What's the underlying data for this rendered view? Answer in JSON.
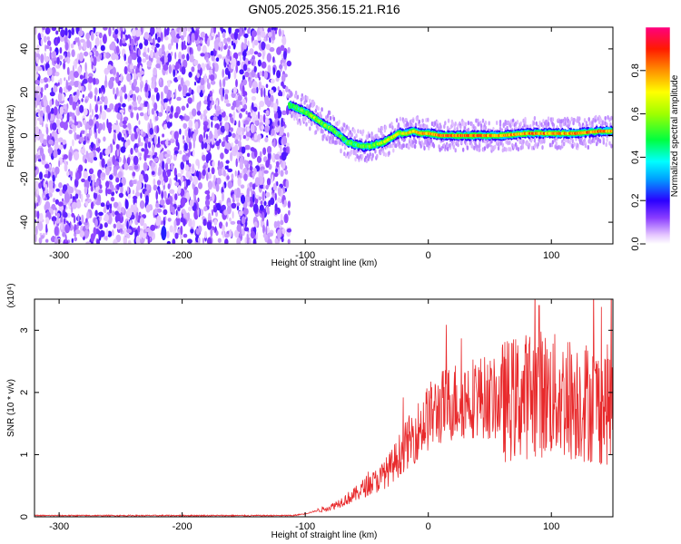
{
  "title": "GN05.2025.356.15.21.R16",
  "chart_data": [
    {
      "type": "heatmap",
      "title": "GN05.2025.356.15.21.R16",
      "xlabel": "Height of straight line (km)",
      "ylabel": "Frequency (Hz)",
      "xlim": [
        -320,
        150
      ],
      "ylim": [
        -50,
        50
      ],
      "xticks": [
        -300,
        -200,
        -100,
        0,
        100
      ],
      "yticks": [
        -40,
        -20,
        0,
        20,
        40
      ],
      "noise_region_x": [
        -320,
        -113
      ],
      "ridge": {
        "x": [
          -113,
          -108,
          -100,
          -92,
          -85,
          -78,
          -72,
          -66,
          -60,
          -54,
          -48,
          -42,
          -36,
          -30,
          -24,
          -18,
          -12,
          -6,
          0,
          10,
          20,
          30,
          40,
          60,
          80,
          100,
          120,
          140,
          150
        ],
        "freq": [
          14,
          13,
          11,
          8,
          5,
          3,
          0,
          -3,
          -4,
          -5,
          -5,
          -4,
          -3,
          -1,
          1,
          1,
          2,
          1,
          1,
          0,
          0,
          0,
          0,
          0,
          1,
          1,
          1,
          2,
          2
        ],
        "peak_amplitude": [
          0.6,
          0.6,
          0.65,
          0.7,
          0.7,
          0.65,
          0.6,
          0.6,
          0.6,
          0.65,
          0.65,
          0.7,
          0.75,
          0.75,
          0.8,
          0.8,
          0.85,
          0.9,
          0.9,
          0.95,
          0.95,
          0.95,
          0.95,
          0.9,
          0.9,
          0.9,
          0.9,
          0.9,
          0.9
        ]
      }
    },
    {
      "type": "line",
      "xlabel": "Height of straight line (km)",
      "ylabel": "SNR (10 * v/v)",
      "y_exponent_label": "(x10⁴)",
      "xlim": [
        -320,
        150
      ],
      "ylim": [
        0,
        3.5
      ],
      "xticks": [
        -300,
        -200,
        -100,
        0,
        100
      ],
      "yticks": [
        0,
        1,
        2,
        3
      ],
      "series": [
        {
          "name": "SNR",
          "color": "#e8292b",
          "envelope_x": [
            -320,
            -110,
            -100,
            -90,
            -80,
            -70,
            -60,
            -50,
            -40,
            -30,
            -20,
            -10,
            0,
            10,
            20,
            30,
            40,
            50,
            60,
            70,
            80,
            90,
            100,
            110,
            120,
            130,
            140,
            150
          ],
          "envelope_y": [
            0.02,
            0.02,
            0.05,
            0.1,
            0.15,
            0.25,
            0.35,
            0.5,
            0.6,
            0.8,
            1.1,
            1.35,
            1.6,
            1.75,
            1.85,
            1.9,
            1.95,
            1.9,
            1.85,
            1.9,
            1.95,
            2.0,
            1.95,
            1.9,
            1.9,
            1.85,
            1.8,
            1.8
          ],
          "peak": {
            "x": 90,
            "y": 3.4
          }
        }
      ]
    },
    {
      "type": "colorbar",
      "label": "Normalized spectral amplitude",
      "range": [
        0.0,
        1.0
      ],
      "ticks": [
        0.0,
        0.2,
        0.4,
        0.6,
        0.8
      ]
    }
  ],
  "colors": {
    "line": "#e8292b",
    "axes": "#000000",
    "background": "#ffffff"
  }
}
